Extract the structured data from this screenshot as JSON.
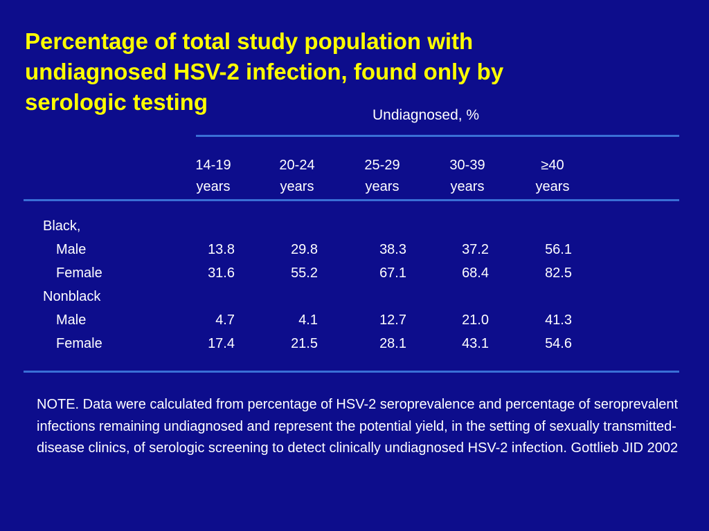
{
  "title": {
    "line1": "Percentage of total study population with",
    "line2": "undiagnosed HSV-2 infection, found only by",
    "line3": "serologic testing"
  },
  "table": {
    "superheader": "Undiagnosed, %",
    "columns": [
      {
        "line1": "14-19",
        "line2": "years"
      },
      {
        "line1": "20-24",
        "line2": "years"
      },
      {
        "line1": "25-29",
        "line2": "years"
      },
      {
        "line1": "30-39",
        "line2": "years"
      },
      {
        "line1": "≥40",
        "line2": "years"
      }
    ],
    "rows": [
      {
        "label": "Black,",
        "values": [
          "",
          "",
          "",
          "",
          ""
        ]
      },
      {
        "label": "Male",
        "values": [
          "13.8",
          "29.8",
          "38.3",
          "37.2",
          "56.1"
        ]
      },
      {
        "label": "Female",
        "values": [
          "31.6",
          "55.2",
          "67.1",
          "68.4",
          "82.5"
        ]
      },
      {
        "label": "Nonblack",
        "values": [
          "",
          "",
          "",
          "",
          ""
        ]
      },
      {
        "label": "Male",
        "values": [
          "4.7",
          "4.1",
          "12.7",
          "21.0",
          "41.3"
        ]
      },
      {
        "label": "Female",
        "values": [
          "17.4",
          "21.5",
          "28.1",
          "43.1",
          "54.6"
        ]
      }
    ]
  },
  "note": "NOTE.  Data were calculated from percentage of HSV-2 seroprevalence and percentage of seroprevalent infections remaining undiagnosed and represent the potential yield, in the setting of sexually transmitted-disease clinics, of serologic screening to detect clinically undiagnosed HSV-2 infection. Gottlieb JID 2002",
  "colors": {
    "background": "#0d0d8c",
    "title": "#ffff00",
    "text": "#ffffff",
    "rule": "#3a6fd6"
  }
}
